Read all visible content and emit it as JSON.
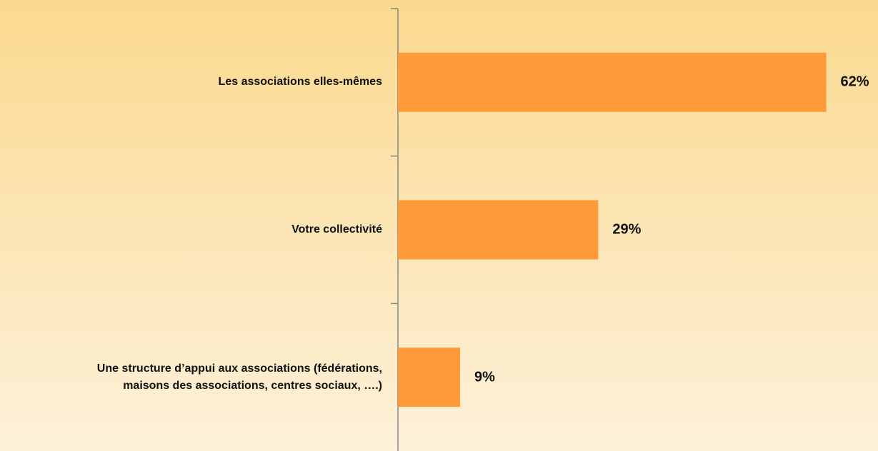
{
  "chart_data": {
    "type": "hbar",
    "categories": [
      "Les associations elles-mêmes",
      "Votre collectivité",
      "Une structure d’appui aux associations (fédérations,\nmaisons des associations, centres sociaux, ….)"
    ],
    "values": [
      62,
      29,
      9
    ],
    "value_labels": [
      "62%",
      "29%",
      "9%"
    ],
    "color": "#fd9b3a"
  }
}
